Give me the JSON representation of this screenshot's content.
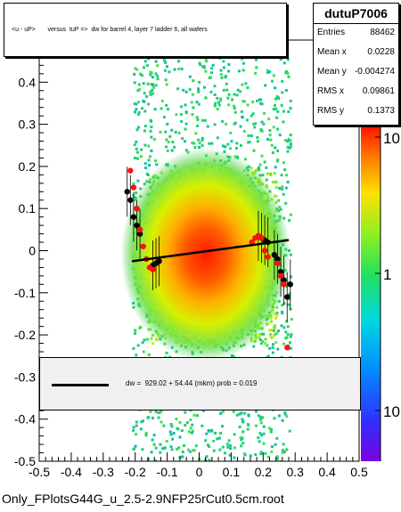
{
  "chart_data": {
    "type": "scatter",
    "title": "<u - uP>       versus  tuP =>  dw for barrel 4, layer 7 ladder 6, all wafers",
    "xlim": [
      -0.5,
      0.5
    ],
    "ylim": [
      -0.5,
      0.5
    ],
    "x_ticks": [
      "-0.5",
      "-0.4",
      "-0.3",
      "-0.2",
      "-0.1",
      "0",
      "0.1",
      "0.2",
      "0.3",
      "0.4",
      "0.5"
    ],
    "y_ticks": [
      "-0.5",
      "-0.4",
      "-0.3",
      "-0.2",
      "-0.1",
      "0",
      "0.1",
      "0.2",
      "0.3",
      "0.4",
      "0.5"
    ],
    "colorbar": {
      "scale": "log",
      "labels": [
        "10",
        "1",
        "10"
      ]
    },
    "stats": {
      "name": "dutuP7006",
      "rows": [
        {
          "key": "Entries",
          "value": "88462"
        },
        {
          "key": "Mean x",
          "value": "0.0228"
        },
        {
          "key": "Mean y",
          "value": "-0.004274"
        },
        {
          "key": "RMS x",
          "value": "0.09861"
        },
        {
          "key": "RMS y",
          "value": "0.1373"
        }
      ]
    },
    "fit": {
      "label": "dw =  929.02 + 54.44 (mkm) prob = 0.019",
      "line": {
        "x": [
          -0.21,
          0.28
        ],
        "y": [
          -0.025,
          0.025
        ]
      }
    },
    "profile_black": {
      "x": [
        -0.225,
        -0.215,
        -0.205,
        -0.195,
        -0.185,
        -0.145,
        -0.135,
        -0.125,
        0.185,
        0.195,
        0.205,
        0.215,
        0.235,
        0.245,
        0.255,
        0.265,
        0.275,
        0.285
      ],
      "y": [
        0.14,
        0.12,
        0.08,
        0.06,
        0.04,
        -0.035,
        -0.03,
        -0.025,
        0.035,
        0.03,
        0.025,
        0.02,
        -0.01,
        -0.02,
        -0.05,
        -0.07,
        -0.11,
        -0.08
      ]
    },
    "profile_red": {
      "x": [
        -0.215,
        -0.205,
        -0.195,
        -0.185,
        -0.175,
        -0.165,
        -0.155,
        -0.145,
        0.165,
        0.175,
        0.185,
        0.195,
        0.205,
        0.215,
        0.245,
        0.255,
        0.265,
        0.275
      ],
      "y": [
        0.19,
        0.15,
        0.1,
        0.05,
        0.01,
        -0.02,
        -0.04,
        -0.045,
        0.02,
        0.03,
        0.035,
        0.03,
        0.0,
        -0.015,
        -0.03,
        -0.06,
        -0.08,
        -0.23
      ]
    }
  },
  "file_label": "Only_FPlotsG44G_u_2.5-2.9NFP25rCut0.5cm.root"
}
